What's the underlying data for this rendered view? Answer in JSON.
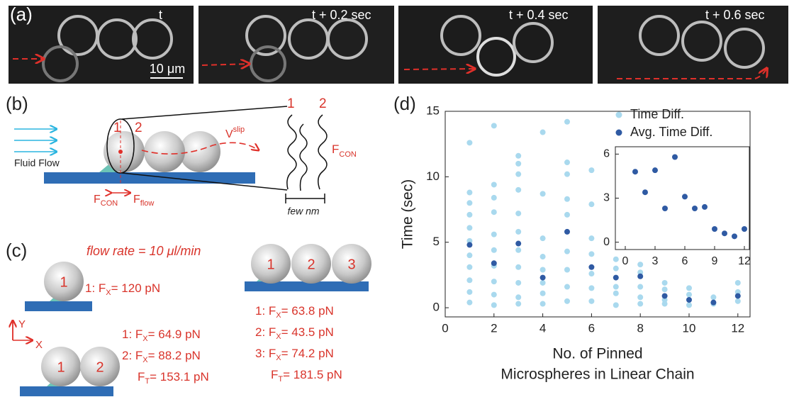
{
  "panel_a": {
    "label": "(a)",
    "frames": [
      "t",
      "t + 0.2 sec",
      "t + 0.4 sec",
      "t + 0.6 sec"
    ],
    "scale_bar": "10 μm"
  },
  "panel_b": {
    "label": "(b)",
    "sphere_labels": [
      "1",
      "2"
    ],
    "velocity": {
      "text": "V",
      "sub": "slip"
    },
    "flow": "Fluid Flow",
    "force_con": {
      "text": "F",
      "sub": "CON"
    },
    "force_flow": {
      "text": "F",
      "sub": "flow"
    },
    "zoom_labels": [
      "1",
      "2"
    ],
    "zoom_force": {
      "text": "F",
      "sub": "CON"
    },
    "gap": "few nm"
  },
  "panel_c": {
    "label": "(c)",
    "flow_rate": "flow rate = 10 μl/min",
    "axes": [
      "Y",
      "X"
    ],
    "groups": [
      {
        "spheres": [
          "1"
        ],
        "forces": [
          {
            "pre": "1: F",
            "sub": "X",
            "post": "= 120 pN"
          }
        ]
      },
      {
        "spheres": [
          "1",
          "2"
        ],
        "forces": [
          {
            "pre": "1: F",
            "sub": "X",
            "post": "= 64.9 pN"
          },
          {
            "pre": "2: F",
            "sub": "X",
            "post": "= 88.2 pN"
          },
          {
            "pre": "F",
            "sub": "T",
            "post": "= 153.1 pN"
          }
        ]
      },
      {
        "spheres": [
          "1",
          "2",
          "3"
        ],
        "forces": [
          {
            "pre": "1: F",
            "sub": "X",
            "post": "= 63.8 pN"
          },
          {
            "pre": "2: F",
            "sub": "X",
            "post": "= 43.5 pN"
          },
          {
            "pre": "3: F",
            "sub": "X",
            "post": "= 74.2 pN"
          },
          {
            "pre": "F",
            "sub": "T",
            "post": "= 181.5 pN"
          }
        ]
      }
    ]
  },
  "chart_data": [
    {
      "type": "scatter",
      "panel_label": "(d)",
      "xlabel": [
        "No. of Pinned",
        "Microspheres in Linear Chain"
      ],
      "ylabel": "Time (sec)",
      "xlim": [
        0,
        12.5
      ],
      "ylim": [
        -0.7,
        15
      ],
      "xticks": [
        0,
        2,
        4,
        6,
        8,
        10,
        12
      ],
      "yticks": [
        0,
        5,
        10,
        15
      ],
      "legend": "upper right",
      "series": [
        {
          "name": "Time Diff.",
          "color": "#a9d9ee",
          "x": [
            1,
            1,
            1,
            1,
            1,
            1,
            1,
            1,
            1,
            1,
            1,
            2,
            2,
            2,
            2,
            2,
            2,
            2,
            2,
            2,
            2,
            3,
            3,
            3,
            3,
            3,
            3,
            3,
            3,
            3,
            3,
            3,
            4,
            4,
            4,
            4,
            4,
            4,
            4,
            4,
            5,
            5,
            5,
            5,
            5,
            5,
            5,
            5,
            5,
            6,
            6,
            6,
            6,
            6,
            6,
            6,
            7,
            7,
            7,
            7,
            7,
            8,
            8,
            8,
            8,
            8,
            9,
            9,
            9,
            9,
            10,
            10,
            10,
            11,
            11,
            12,
            12,
            12
          ],
          "values": [
            12.6,
            8.8,
            8,
            7.1,
            6.1,
            5.1,
            4,
            3.1,
            2.1,
            1.2,
            0.4,
            13.9,
            9.4,
            8.4,
            7.3,
            5.6,
            4.4,
            3.2,
            2,
            1,
            0.2,
            11.6,
            11,
            10.2,
            9,
            7.2,
            5.8,
            4.4,
            3.1,
            1.9,
            0.8,
            0.3,
            13.4,
            8.7,
            5.3,
            3.9,
            2.9,
            1.9,
            1.1,
            0.3,
            14.2,
            11.1,
            10.2,
            8.3,
            7.1,
            4.3,
            2.9,
            1.6,
            0.5,
            10.5,
            7.9,
            5.3,
            4.1,
            2.6,
            1.5,
            0.5,
            3.7,
            3,
            1.6,
            1.1,
            0.2,
            3.3,
            2.7,
            1.6,
            0.8,
            0.3,
            1.9,
            1.4,
            0.6,
            0.3,
            1.5,
            1,
            0.2,
            0.8,
            0.3,
            1.9,
            1.2,
            0.5
          ]
        },
        {
          "name": "Avg. Time Diff.",
          "color": "#2f5aa3",
          "x": [
            1,
            2,
            3,
            4,
            5,
            6,
            7,
            8,
            9,
            10,
            11,
            12
          ],
          "values": [
            4.8,
            3.4,
            4.9,
            2.3,
            5.8,
            3.1,
            2.3,
            2.4,
            0.9,
            0.6,
            0.4,
            0.9
          ]
        }
      ]
    },
    {
      "type": "scatter",
      "xlim": [
        -1,
        12.5
      ],
      "ylim": [
        -0.5,
        6.5
      ],
      "xticks": [
        0,
        3,
        6,
        9,
        12
      ],
      "yticks": [
        0,
        3,
        6
      ],
      "series": [
        {
          "color": "#2f5aa3",
          "x": [
            1,
            2,
            3,
            4,
            5,
            6,
            7,
            8,
            9,
            10,
            11,
            12
          ],
          "values": [
            4.8,
            3.4,
            4.9,
            2.3,
            5.8,
            3.1,
            2.3,
            2.4,
            0.9,
            0.6,
            0.4,
            0.9
          ]
        }
      ]
    }
  ]
}
